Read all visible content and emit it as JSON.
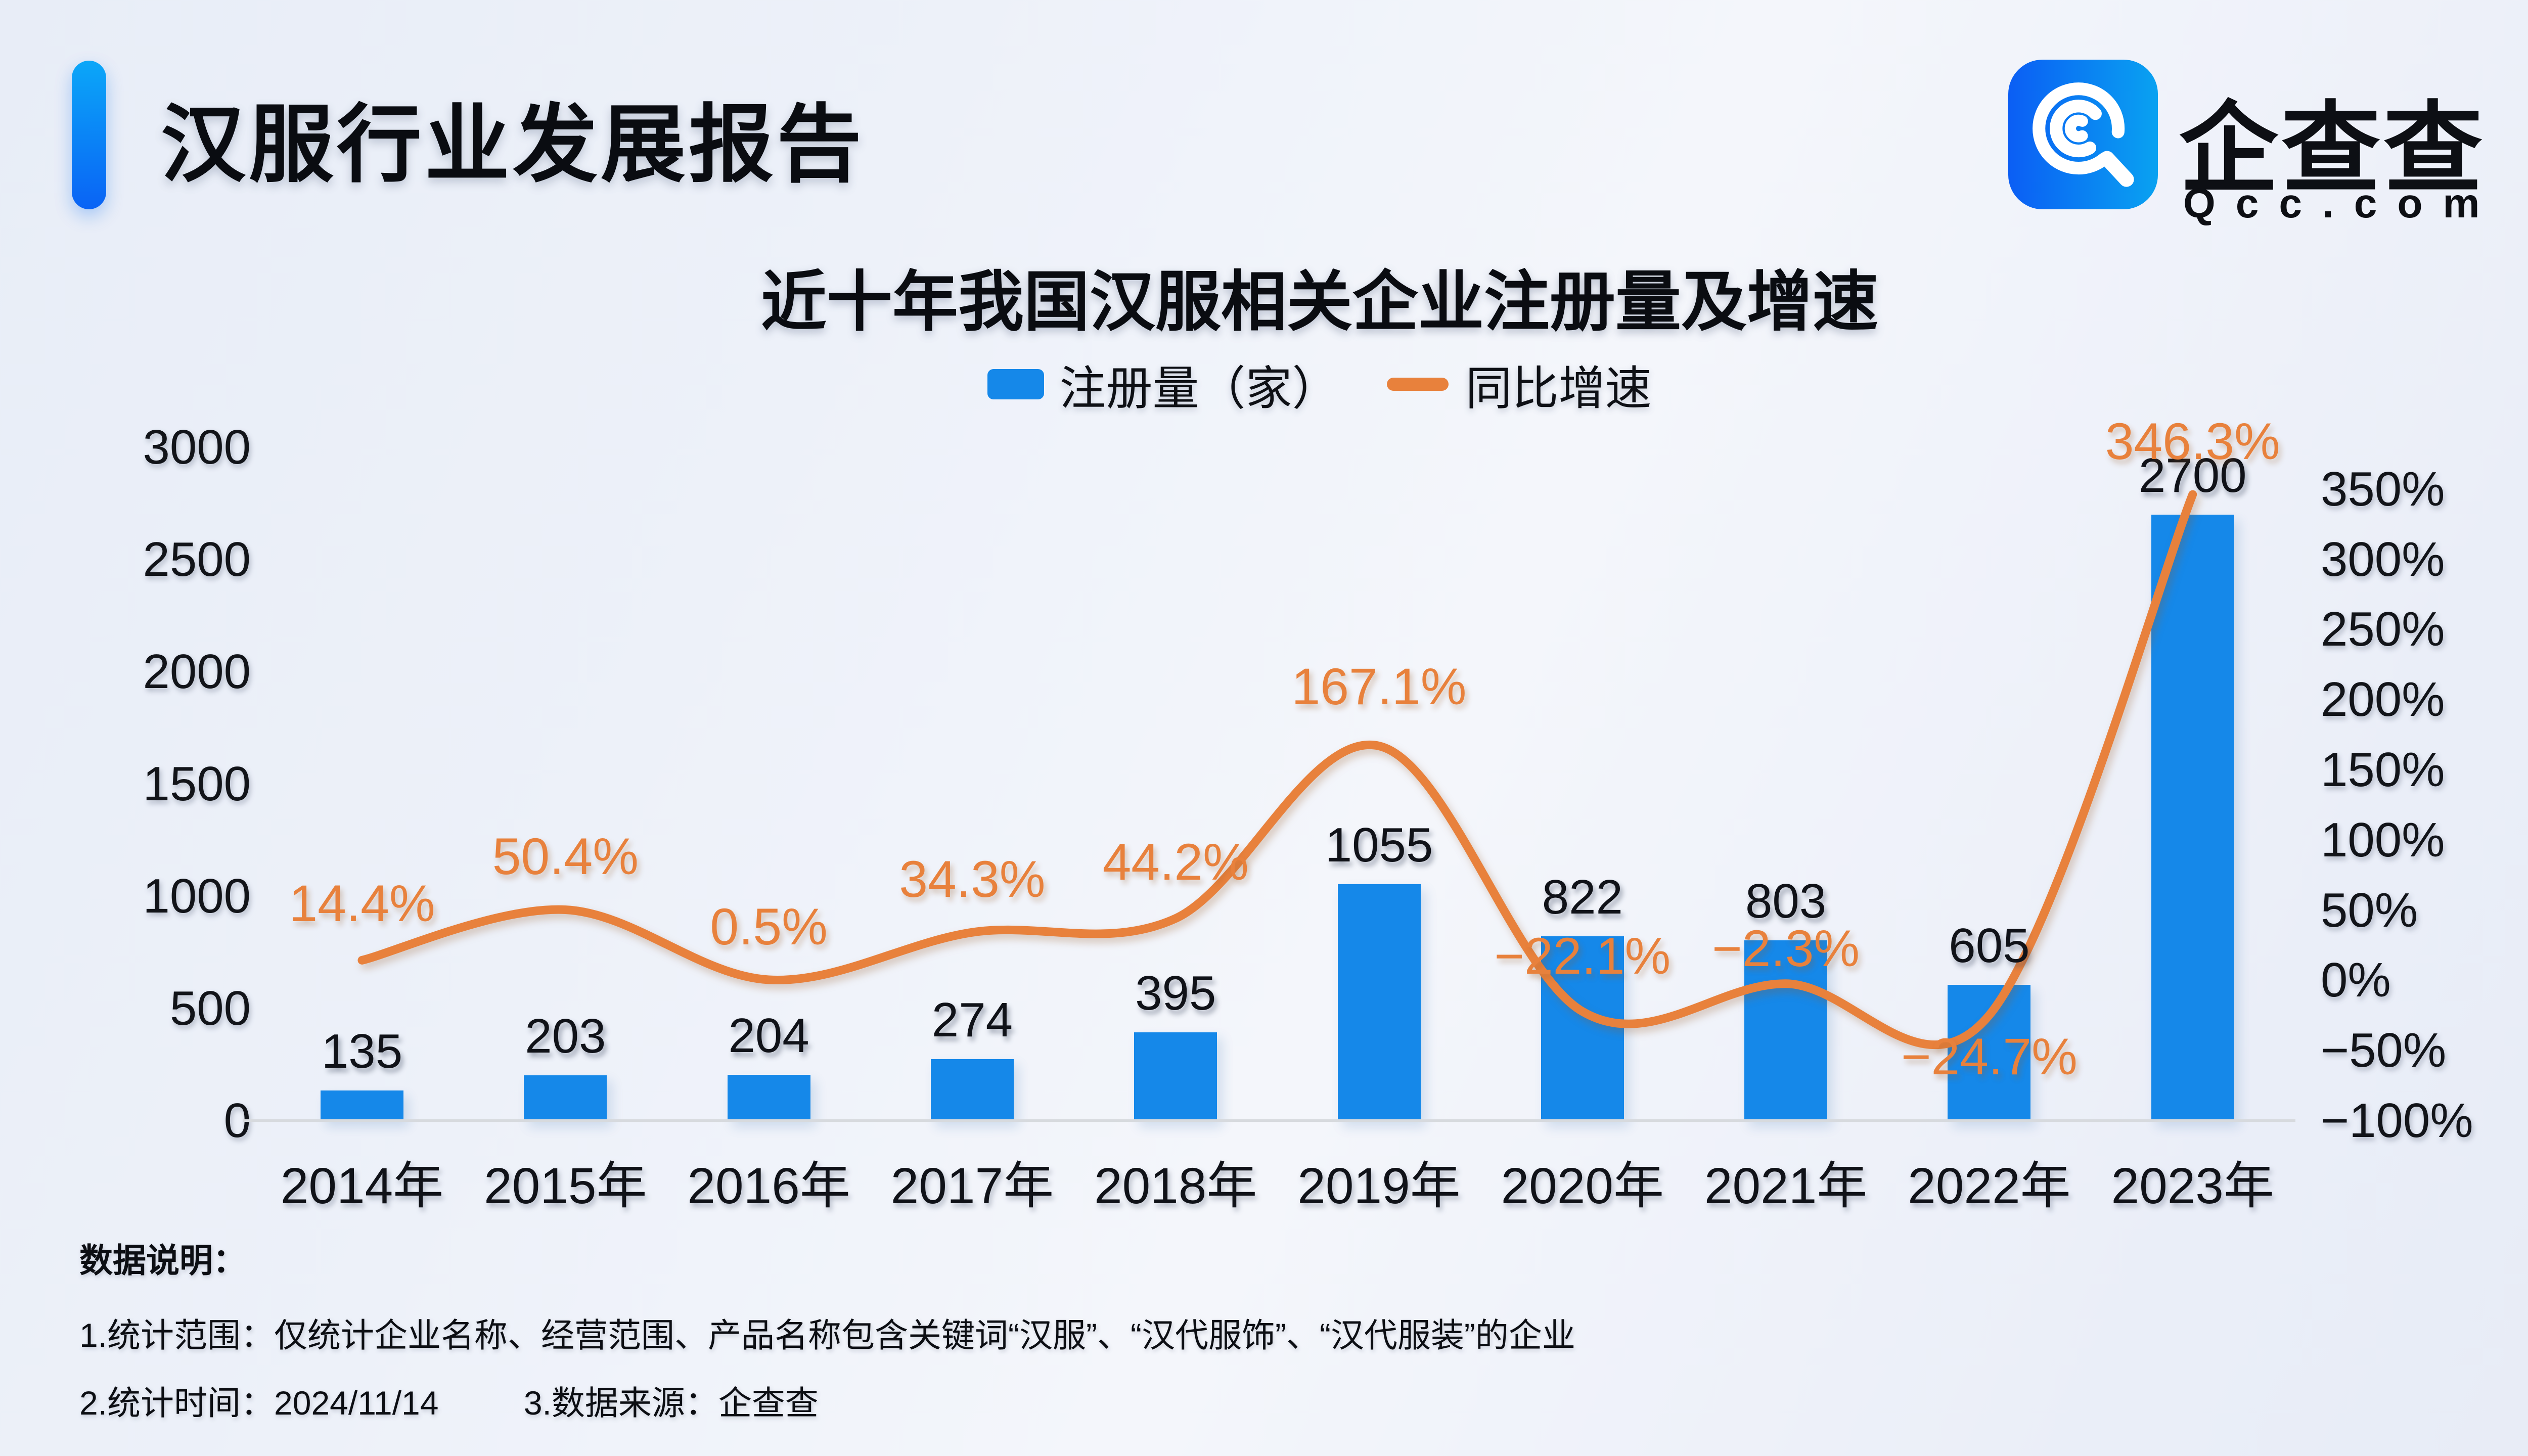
{
  "header": {
    "title": "汉服行业发展报告"
  },
  "logo": {
    "name": "企查查",
    "domain": "Qcc.com",
    "icon": "qcc-magnifier-icon",
    "accent_color": "#0a63f5"
  },
  "chart_data": {
    "type": "bar",
    "subtype": "bar-line-combo",
    "title": "近十年我国汉服相关企业注册量及增速",
    "legend_position": "top",
    "grid": false,
    "categories": [
      "2014年",
      "2015年",
      "2016年",
      "2017年",
      "2018年",
      "2019年",
      "2020年",
      "2021年",
      "2022年",
      "2023年"
    ],
    "legend": [
      {
        "label": "注册量（家）",
        "marker": "rect",
        "color": "#1588e9"
      },
      {
        "label": "同比增速",
        "marker": "line",
        "color": "#e8813c"
      }
    ],
    "series": [
      {
        "name": "注册量（家）",
        "type": "bar",
        "axis": "left",
        "color": "#1588e9",
        "values": [
          135,
          203,
          204,
          274,
          395,
          1055,
          822,
          803,
          605,
          2700
        ],
        "value_labels": [
          "135",
          "203",
          "204",
          "274",
          "395",
          "1055",
          "822",
          "803",
          "605",
          "2700"
        ]
      },
      {
        "name": "同比增速",
        "type": "line",
        "axis": "right",
        "color": "#e8813c",
        "values": [
          14.4,
          50.4,
          0.5,
          34.3,
          44.2,
          167.1,
          -22.1,
          -2.3,
          -24.7,
          346.3
        ],
        "point_labels": [
          "14.4%",
          "50.4%",
          "0.5%",
          "34.3%",
          "44.2%",
          "167.1%",
          "−22.1%",
          "−2.3%",
          "−24.7%",
          "346.3%"
        ],
        "label_dy": [
          -112,
          -105,
          -105,
          -105,
          -112,
          -118,
          -110,
          -70,
          82,
          -105
        ],
        "smooth": true
      }
    ],
    "left_axis": {
      "min": 0,
      "max": 3000,
      "ticks": [
        3000,
        2500,
        2000,
        1500,
        1000,
        500,
        0
      ]
    },
    "right_axis": {
      "min": -100,
      "max": 350,
      "tick_values": [
        350,
        300,
        250,
        200,
        150,
        100,
        50,
        0,
        -50,
        -100
      ],
      "tick_labels": [
        "350%",
        "300%",
        "250%",
        "200%",
        "150%",
        "100%",
        "50%",
        "0%",
        "−50%",
        "−100%"
      ]
    }
  },
  "notes": {
    "heading": "数据说明：",
    "items": [
      "1.统计范围：仅统计企业名称、经营范围、产品名称包含关键词“汉服”、“汉代服饰”、“汉代服装”的企业",
      "2.统计时间：2024/11/14",
      "3.数据来源：企查查"
    ]
  }
}
